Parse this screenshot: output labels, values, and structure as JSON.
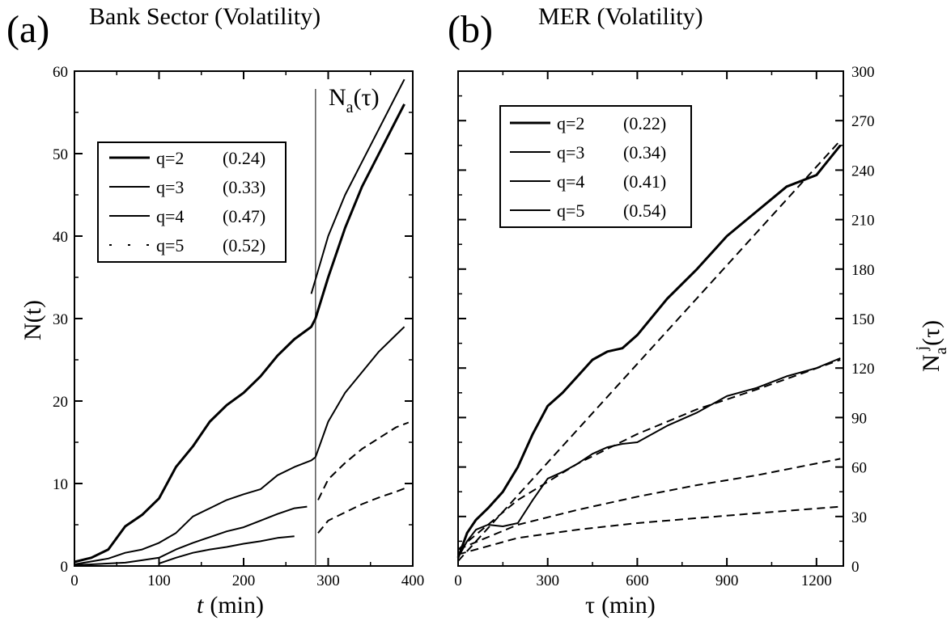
{
  "chart_data": [
    {
      "panel": "(a)",
      "title": "Bank Sector (Volatility)",
      "type": "line",
      "xlabel_italic": "t",
      "xlabel_unit": "(min)",
      "ylabel": "N(t)",
      "xlim": [
        0,
        400
      ],
      "ylim": [
        0,
        60
      ],
      "xticks": [
        0,
        100,
        200,
        300,
        400
      ],
      "yticks": [
        0,
        10,
        20,
        30,
        40,
        50,
        60
      ],
      "grid": false,
      "legend": "upper-left",
      "annotation": {
        "main": "N",
        "sub": "a",
        "tail": "(τ)",
        "vline_x": 285
      },
      "series": [
        {
          "name": "q=2",
          "exponent": "(0.24)",
          "style": "solid",
          "width": 3,
          "x": [
            0,
            20,
            40,
            60,
            80,
            100,
            120,
            140,
            160,
            180,
            200,
            220,
            240,
            260,
            280,
            285
          ],
          "y": [
            0.5,
            1.0,
            2.0,
            4.8,
            6.2,
            8.2,
            12.0,
            14.5,
            17.5,
            19.5,
            21.0,
            23.0,
            25.5,
            27.5,
            29.0,
            30.0
          ]
        },
        {
          "name": "q=3",
          "exponent": "(0.33)",
          "style": "solid",
          "width": 2,
          "x": [
            0,
            40,
            60,
            80,
            100,
            120,
            140,
            160,
            180,
            200,
            220,
            240,
            260,
            280,
            285
          ],
          "y": [
            0.2,
            0.9,
            1.6,
            2.0,
            2.8,
            4.0,
            6.0,
            7.0,
            8.0,
            8.7,
            9.3,
            11.0,
            12.0,
            12.8,
            13.2
          ]
        },
        {
          "name": "q=4",
          "exponent": "(0.47)",
          "style": "solid",
          "width": 2,
          "x": [
            0,
            60,
            80,
            100,
            120,
            140,
            160,
            180,
            200,
            220,
            240,
            260,
            275
          ],
          "y": [
            0.1,
            0.4,
            0.7,
            1.0,
            2.0,
            2.8,
            3.5,
            4.2,
            4.7,
            5.5,
            6.3,
            7.0,
            7.2
          ]
        },
        {
          "name": "q=5",
          "exponent": "(0.52)",
          "style": "solid",
          "width": 2,
          "x": [
            100,
            120,
            140,
            160,
            180,
            200,
            220,
            240,
            260
          ],
          "y": [
            0.3,
            1.0,
            1.6,
            2.0,
            2.3,
            2.7,
            3.0,
            3.4,
            3.6
          ]
        },
        {
          "name": "",
          "style": "solid",
          "width": 2,
          "x": [
            280,
            300,
            320,
            340,
            360,
            380,
            390
          ],
          "y": [
            33,
            40,
            45,
            49,
            53,
            57,
            59
          ]
        },
        {
          "name": "",
          "style": "solid",
          "width": 3,
          "x": [
            285,
            300,
            320,
            340,
            360,
            380,
            390
          ],
          "y": [
            30,
            35,
            41,
            46,
            50,
            54,
            56
          ]
        },
        {
          "name": "",
          "style": "solid",
          "width": 2,
          "x": [
            285,
            300,
            320,
            340,
            360,
            380,
            390
          ],
          "y": [
            13.2,
            17.5,
            21.0,
            23.5,
            26.0,
            28.0,
            29.0
          ]
        },
        {
          "name": "",
          "style": "dashed",
          "width": 2,
          "x": [
            288,
            300,
            320,
            340,
            360,
            380,
            395
          ],
          "y": [
            8.0,
            10.5,
            12.5,
            14.2,
            15.5,
            16.8,
            17.4
          ]
        },
        {
          "name": "",
          "style": "dashed",
          "width": 2,
          "x": [
            288,
            300,
            320,
            340,
            360,
            380,
            395
          ],
          "y": [
            4.0,
            5.5,
            6.5,
            7.5,
            8.3,
            9.0,
            9.6
          ]
        }
      ]
    },
    {
      "panel": "(b)",
      "title": "MER  (Volatility)",
      "type": "line",
      "xlabel_italic": "τ",
      "xlabel_unit": "(min)",
      "ylabel_main": "N",
      "ylabel_sub": "a",
      "ylabel_sup": "j",
      "ylabel_tail": "(τ)",
      "xlim": [
        0,
        1290
      ],
      "ylim": [
        0,
        300
      ],
      "xticks": [
        0,
        300,
        600,
        900,
        1200
      ],
      "yticks": [
        0,
        30,
        60,
        90,
        120,
        150,
        180,
        210,
        240,
        270,
        300
      ],
      "grid": false,
      "legend": "upper-left",
      "series": [
        {
          "name": "q=2",
          "exponent": "(0.22)",
          "style": "solid",
          "width": 3,
          "x": [
            0,
            30,
            60,
            100,
            150,
            200,
            250,
            300,
            350,
            400,
            450,
            500,
            550,
            600,
            700,
            800,
            900,
            1000,
            1100,
            1200,
            1280
          ],
          "y": [
            5,
            20,
            28,
            35,
            45,
            60,
            80,
            97,
            105,
            115,
            125,
            130,
            132,
            140,
            162,
            180,
            200,
            215,
            230,
            237,
            255
          ]
        },
        {
          "name": "q=3",
          "exponent": "(0.34)",
          "style": "solid",
          "width": 2,
          "x": [
            0,
            30,
            60,
            100,
            150,
            200,
            250,
            300,
            350,
            400,
            450,
            500,
            550,
            600,
            700,
            800,
            900,
            1000,
            1100,
            1200,
            1280
          ],
          "y": [
            5,
            15,
            22,
            25,
            24,
            26,
            40,
            53,
            57,
            62,
            68,
            72,
            74,
            75,
            85,
            93,
            103,
            108,
            115,
            120,
            126
          ]
        },
        {
          "name": "q=4",
          "exponent": "(0.41)",
          "style": "dashed",
          "width": 2,
          "x": [
            0,
            200,
            400,
            600,
            800,
            1000,
            1280
          ],
          "y": [
            10,
            25,
            34,
            42,
            49,
            55,
            65
          ]
        },
        {
          "name": "q=5",
          "exponent": "(0.54)",
          "style": "dashed",
          "width": 2,
          "x": [
            0,
            200,
            400,
            600,
            800,
            1000,
            1280
          ],
          "y": [
            7,
            17,
            22,
            26,
            29,
            32,
            36
          ]
        },
        {
          "name": "",
          "style": "dashed",
          "width": 2,
          "x": [
            0,
            1280
          ],
          "y": [
            3,
            258
          ]
        },
        {
          "name": "",
          "style": "dashed",
          "width": 2,
          "x": [
            0,
            200,
            400,
            600,
            800,
            1000,
            1280
          ],
          "y": [
            10,
            40,
            62,
            80,
            95,
            107,
            125
          ]
        }
      ]
    }
  ]
}
